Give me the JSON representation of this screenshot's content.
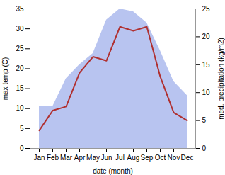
{
  "chart_data": {
    "type": "line",
    "categories": [
      "Jan",
      "Feb",
      "Mar",
      "Apr",
      "May",
      "Jun",
      "Jul",
      "Aug",
      "Sep",
      "Oct",
      "Nov",
      "Dec"
    ],
    "series": [
      {
        "type": "area",
        "axis": "y2",
        "color": "#b8c4f0",
        "values": [
          7.5,
          7.5,
          12.5,
          15.0,
          17.0,
          23.0,
          25.0,
          24.5,
          22.5,
          17.5,
          12.0,
          9.5
        ]
      },
      {
        "type": "line",
        "axis": "y",
        "color": "#b03030",
        "values": [
          4.5,
          9.5,
          10.5,
          19.0,
          23.0,
          22.0,
          30.5,
          29.5,
          30.5,
          18.0,
          9.0,
          7.0
        ]
      }
    ],
    "xlabel": "date (month)",
    "ylabel": "max temp (C)",
    "y2label": "med. precipitation (kg/m2)",
    "ylim": [
      0,
      35
    ],
    "yticks": [
      0,
      5,
      10,
      15,
      20,
      25,
      30,
      35
    ],
    "y2lim": [
      0,
      25
    ],
    "y2ticks": [
      0,
      5,
      10,
      15,
      20,
      25
    ]
  }
}
